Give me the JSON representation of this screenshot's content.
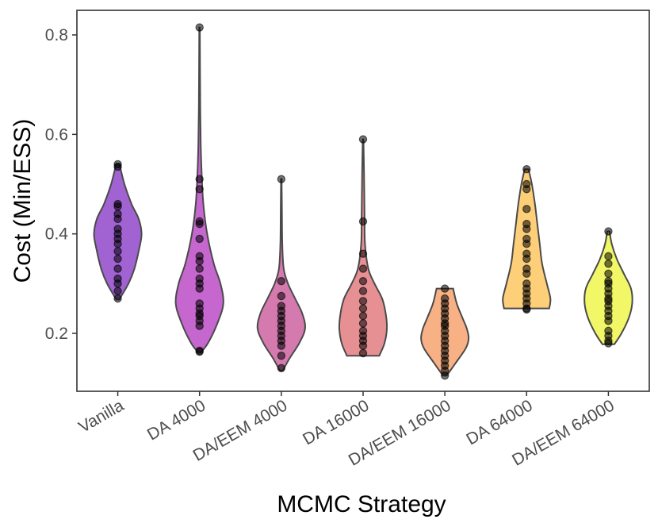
{
  "chart_data": {
    "type": "violin",
    "title": "",
    "xlabel": "MCMC Strategy",
    "ylabel": "Cost (Min/ESS)",
    "ylim": [
      0.08,
      0.85
    ],
    "yticks": [
      0.2,
      0.4,
      0.6,
      0.8
    ],
    "ytick_labels": [
      "0.2",
      "0.4",
      "0.6",
      "0.8"
    ],
    "grid": false,
    "legend": "none",
    "categories": [
      "Vanilla",
      "DA 4000",
      "DA/EEM 4000",
      "DA 16000",
      "DA/EEM 16000",
      "DA 64000",
      "DA/EEM 64000"
    ],
    "colors": [
      "#8c3fc8",
      "#b846c4",
      "#cc5d9e",
      "#e2787c",
      "#f5a06a",
      "#fec55c",
      "#eef545"
    ],
    "series": [
      {
        "name": "Vanilla",
        "points": [
          0.54,
          0.535,
          0.46,
          0.455,
          0.44,
          0.43,
          0.41,
          0.4,
          0.39,
          0.38,
          0.365,
          0.35,
          0.33,
          0.31,
          0.3,
          0.285,
          0.27
        ],
        "density": [
          [
            0.268,
            0.06
          ],
          [
            0.3,
            0.45
          ],
          [
            0.33,
            0.7
          ],
          [
            0.37,
            0.9
          ],
          [
            0.4,
            1.0
          ],
          [
            0.43,
            0.88
          ],
          [
            0.46,
            0.58
          ],
          [
            0.5,
            0.28
          ],
          [
            0.54,
            0.07
          ]
        ]
      },
      {
        "name": "DA 4000",
        "points": [
          0.815,
          0.51,
          0.49,
          0.425,
          0.42,
          0.39,
          0.355,
          0.345,
          0.33,
          0.31,
          0.3,
          0.29,
          0.26,
          0.25,
          0.24,
          0.235,
          0.225,
          0.215,
          0.165,
          0.163
        ],
        "density": [
          [
            0.162,
            0.06
          ],
          [
            0.18,
            0.35
          ],
          [
            0.22,
            0.75
          ],
          [
            0.26,
            1.0
          ],
          [
            0.3,
            0.88
          ],
          [
            0.34,
            0.6
          ],
          [
            0.4,
            0.32
          ],
          [
            0.46,
            0.16
          ],
          [
            0.52,
            0.09
          ],
          [
            0.58,
            0.05
          ],
          [
            0.65,
            0.03
          ],
          [
            0.73,
            0.02
          ],
          [
            0.815,
            0.012
          ]
        ]
      },
      {
        "name": "DA/EEM 4000",
        "points": [
          0.51,
          0.305,
          0.275,
          0.255,
          0.245,
          0.235,
          0.225,
          0.215,
          0.205,
          0.195,
          0.185,
          0.175,
          0.155,
          0.13
        ],
        "density": [
          [
            0.125,
            0.06
          ],
          [
            0.15,
            0.35
          ],
          [
            0.18,
            0.75
          ],
          [
            0.21,
            1.0
          ],
          [
            0.24,
            0.88
          ],
          [
            0.27,
            0.58
          ],
          [
            0.3,
            0.28
          ],
          [
            0.33,
            0.1
          ],
          [
            0.38,
            0.04
          ],
          [
            0.45,
            0.025
          ],
          [
            0.51,
            0.012
          ]
        ]
      },
      {
        "name": "DA 16000",
        "points": [
          0.59,
          0.425,
          0.36,
          0.33,
          0.305,
          0.285,
          0.265,
          0.25,
          0.235,
          0.22,
          0.205,
          0.195,
          0.185,
          0.175,
          0.16
        ],
        "density": [
          [
            0.155,
            0.68
          ],
          [
            0.18,
            0.9
          ],
          [
            0.21,
            1.0
          ],
          [
            0.24,
            0.95
          ],
          [
            0.27,
            0.8
          ],
          [
            0.3,
            0.48
          ],
          [
            0.33,
            0.22
          ],
          [
            0.38,
            0.08
          ],
          [
            0.44,
            0.06
          ],
          [
            0.52,
            0.04
          ],
          [
            0.59,
            0.015
          ]
        ]
      },
      {
        "name": "DA/EEM 16000",
        "points": [
          0.29,
          0.27,
          0.26,
          0.25,
          0.24,
          0.23,
          0.22,
          0.215,
          0.205,
          0.195,
          0.185,
          0.175,
          0.165,
          0.155,
          0.145,
          0.135,
          0.125,
          0.115
        ],
        "density": [
          [
            0.115,
            0.08
          ],
          [
            0.14,
            0.45
          ],
          [
            0.17,
            0.88
          ],
          [
            0.19,
            1.0
          ],
          [
            0.21,
            0.92
          ],
          [
            0.23,
            0.75
          ],
          [
            0.26,
            0.5
          ],
          [
            0.29,
            0.35
          ]
        ]
      },
      {
        "name": "DA 64000",
        "points": [
          0.53,
          0.5,
          0.49,
          0.45,
          0.42,
          0.41,
          0.39,
          0.38,
          0.36,
          0.35,
          0.33,
          0.32,
          0.3,
          0.29,
          0.28,
          0.27,
          0.26,
          0.25,
          0.248
        ],
        "density": [
          [
            0.25,
            0.95
          ],
          [
            0.27,
            1.0
          ],
          [
            0.3,
            0.85
          ],
          [
            0.34,
            0.65
          ],
          [
            0.38,
            0.55
          ],
          [
            0.42,
            0.45
          ],
          [
            0.46,
            0.35
          ],
          [
            0.5,
            0.22
          ],
          [
            0.53,
            0.08
          ]
        ]
      },
      {
        "name": "DA/EEM 64000",
        "points": [
          0.405,
          0.355,
          0.34,
          0.32,
          0.305,
          0.3,
          0.29,
          0.28,
          0.27,
          0.265,
          0.255,
          0.245,
          0.235,
          0.225,
          0.205,
          0.195,
          0.185,
          0.18
        ],
        "density": [
          [
            0.178,
            0.25
          ],
          [
            0.2,
            0.55
          ],
          [
            0.23,
            0.85
          ],
          [
            0.26,
            1.0
          ],
          [
            0.29,
            0.95
          ],
          [
            0.32,
            0.65
          ],
          [
            0.35,
            0.35
          ],
          [
            0.38,
            0.14
          ],
          [
            0.405,
            0.05
          ]
        ]
      }
    ]
  }
}
